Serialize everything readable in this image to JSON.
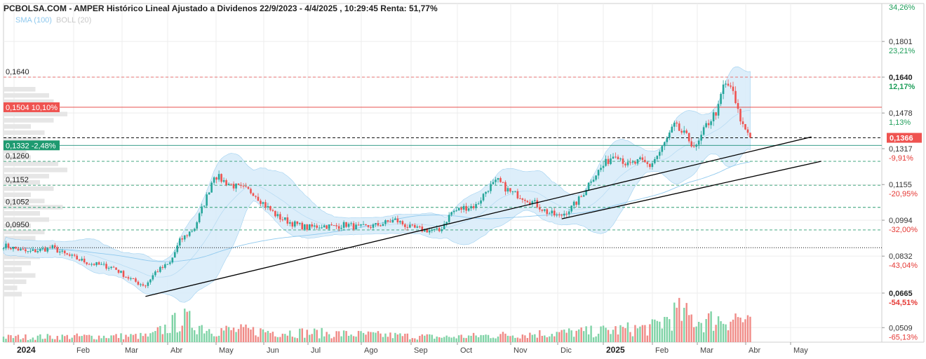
{
  "title": "PCBOLSA.COM - AMPER Histórico Lineal Ajustado a Dividenos 22/9/2023 - 4/4/2025 , 10:29:45 Renta: 51,77%",
  "indicators": {
    "sma": "SMA (100)",
    "boll": "BOLL (20)"
  },
  "colors": {
    "up": "#26a69a",
    "down": "#ef5350",
    "band": "#d8ecfa",
    "band_edge": "#8fc9ee",
    "grid": "#ededed",
    "trend": "#000000",
    "red_line": "#e53935",
    "teal_line": "#1e8f7a"
  },
  "chart_data": {
    "type": "candlestick",
    "title": "PCBOLSA.COM - AMPER Histórico Lineal Ajustado a Dividenos 22/9/2023 - 4/4/2025 , 10:29:45 Renta: 51,77%",
    "ylim": [
      0.0475,
      0.2
    ],
    "y_ticks": [
      {
        "value": "0,1801",
        "pct": "23,21%",
        "v": 0.1801
      },
      {
        "value": "0,1640",
        "pct": "12,17%",
        "v": 0.164,
        "bold": true
      },
      {
        "value": "0,1478",
        "pct": "1,13%",
        "v": 0.1478
      },
      {
        "value": "0,1317",
        "pct": "-9,91%",
        "v": 0.1317
      },
      {
        "value": "0,1155",
        "pct": "-20,95%",
        "v": 0.1155
      },
      {
        "value": "0,0994",
        "pct": "-32,00%",
        "v": 0.0994
      },
      {
        "value": "0,0832",
        "pct": "-43,04%",
        "v": 0.0832
      },
      {
        "value": "0,0665",
        "pct": "-54,51%",
        "v": 0.0665,
        "bold": true
      },
      {
        "value": "0,0509",
        "pct": "-65,13%",
        "v": 0.0509
      }
    ],
    "top_pct": "34,26%",
    "x_ticks": [
      {
        "label": "2024",
        "bold": true
      },
      {
        "label": "Feb"
      },
      {
        "label": "Mar"
      },
      {
        "label": "Abr"
      },
      {
        "label": "May"
      },
      {
        "label": "Jun"
      },
      {
        "label": "Jul"
      },
      {
        "label": "Ago"
      },
      {
        "label": "Sep"
      },
      {
        "label": "Oct"
      },
      {
        "label": "Nov"
      },
      {
        "label": "Dic"
      },
      {
        "label": "2025",
        "bold": true
      },
      {
        "label": "Feb"
      },
      {
        "label": "Mar"
      },
      {
        "label": "Abr"
      },
      {
        "label": "May"
      }
    ],
    "levels": [
      {
        "label": "0,1640",
        "value": 0.164,
        "style": "red-dash"
      },
      {
        "label": "0,1260",
        "value": 0.126,
        "style": "green-dash"
      },
      {
        "label": "0,1152",
        "value": 0.1152,
        "style": "green-dash"
      },
      {
        "label": "0,1052",
        "value": 0.1052,
        "style": "green-dash"
      },
      {
        "label": "0,0950",
        "value": 0.095,
        "style": "green-dash"
      }
    ],
    "black_dash_level": 0.1366,
    "black_dot_level": 0.087,
    "tag_red": {
      "text": "0,1504  10,10%",
      "value": 0.1504
    },
    "tag_teal": {
      "text": "0,1332  -2,48%",
      "value": 0.1332
    },
    "last_price": {
      "text": "0,1366",
      "value": 0.1366
    },
    "price_anchors": [
      [
        0,
        0.088
      ],
      [
        10,
        0.085
      ],
      [
        20,
        0.087
      ],
      [
        25,
        0.084
      ],
      [
        35,
        0.08
      ],
      [
        45,
        0.078
      ],
      [
        50,
        0.074
      ],
      [
        55,
        0.071
      ],
      [
        58,
        0.07
      ],
      [
        62,
        0.076
      ],
      [
        68,
        0.08
      ],
      [
        72,
        0.09
      ],
      [
        78,
        0.096
      ],
      [
        83,
        0.11
      ],
      [
        86,
        0.12
      ],
      [
        90,
        0.117
      ],
      [
        96,
        0.114
      ],
      [
        102,
        0.112
      ],
      [
        107,
        0.106
      ],
      [
        112,
        0.101
      ],
      [
        118,
        0.098
      ],
      [
        124,
        0.096
      ],
      [
        130,
        0.097
      ],
      [
        135,
        0.0965
      ],
      [
        140,
        0.0975
      ],
      [
        145,
        0.096
      ],
      [
        152,
        0.097
      ],
      [
        160,
        0.0995
      ],
      [
        166,
        0.096
      ],
      [
        172,
        0.095
      ],
      [
        178,
        0.0945
      ],
      [
        183,
        0.103
      ],
      [
        188,
        0.105
      ],
      [
        193,
        0.106
      ],
      [
        198,
        0.114
      ],
      [
        202,
        0.117
      ],
      [
        207,
        0.112
      ],
      [
        212,
        0.11
      ],
      [
        217,
        0.107
      ],
      [
        222,
        0.103
      ],
      [
        227,
        0.101
      ],
      [
        232,
        0.105
      ],
      [
        236,
        0.11
      ],
      [
        240,
        0.118
      ],
      [
        245,
        0.124
      ],
      [
        250,
        0.13
      ],
      [
        255,
        0.124
      ],
      [
        260,
        0.126
      ],
      [
        264,
        0.124
      ],
      [
        268,
        0.13
      ],
      [
        271,
        0.136
      ],
      [
        274,
        0.142
      ],
      [
        278,
        0.138
      ],
      [
        283,
        0.132
      ],
      [
        287,
        0.142
      ],
      [
        292,
        0.15
      ],
      [
        294,
        0.16
      ],
      [
        297,
        0.16
      ],
      [
        300,
        0.148
      ],
      [
        302,
        0.142
      ],
      [
        305,
        0.138
      ]
    ],
    "last_index": 305,
    "volume_anchors": [
      [
        0,
        0.12
      ],
      [
        60,
        0.15
      ],
      [
        73,
        0.55
      ],
      [
        85,
        0.3
      ],
      [
        180,
        0.12
      ],
      [
        240,
        0.25
      ],
      [
        265,
        0.35
      ],
      [
        275,
        0.7
      ],
      [
        285,
        0.5
      ],
      [
        300,
        0.6
      ],
      [
        305,
        0.4
      ]
    ],
    "volume_profile": [
      0.35,
      0.5,
      0.55,
      0.45,
      0.7,
      0.55,
      0.3,
      0.45,
      0.4,
      0.35,
      0.25,
      0.3,
      0.6,
      0.7,
      0.5,
      0.4,
      0.55,
      0.3,
      0.45,
      0.65,
      0.4,
      0.5,
      0.3,
      0.45,
      0.35,
      0.55,
      0.25,
      0.4,
      0.3,
      0.2,
      0.35,
      0.25,
      0.15,
      0.2
    ],
    "trendlines": [
      {
        "from": [
          58,
          0.065
        ],
        "to": [
          330,
          0.137
        ]
      },
      {
        "from": [
          228,
          0.1
        ],
        "to": [
          334,
          0.126
        ]
      }
    ]
  }
}
